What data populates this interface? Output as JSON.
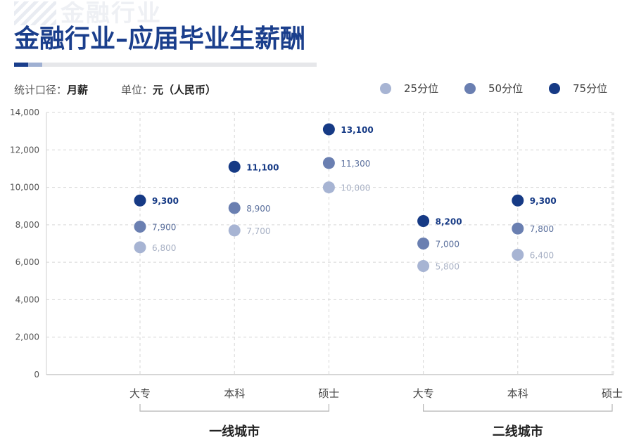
{
  "header": {
    "watermark": "金融行业",
    "title": "金融行业–应届毕业生薪酬"
  },
  "meta": {
    "scope_label": "统计口径：",
    "scope_value": "月薪",
    "unit_label": "单位：",
    "unit_value": "元（人民币）"
  },
  "colors": {
    "p25": "#a7b4d3",
    "p50": "#6a7fb1",
    "p75": "#163a85",
    "title": "#1a3e8c",
    "grid": "#d6d6d6"
  },
  "chart_data": {
    "type": "scatter",
    "title": "",
    "xlabel": "",
    "ylabel": "",
    "ylim": [
      0,
      14000
    ],
    "yticks": [
      0,
      2000,
      4000,
      6000,
      8000,
      10000,
      12000,
      14000
    ],
    "ytick_labels": [
      "0",
      "2,000",
      "4,000",
      "6,000",
      "8,000",
      "10,000",
      "12,000",
      "14,000"
    ],
    "categories": [
      "大专",
      "本科",
      "硕士",
      "大专",
      "本科",
      "硕士"
    ],
    "groups": [
      {
        "label": "一线城市",
        "categories": [
          0,
          1,
          2
        ]
      },
      {
        "label": "二线城市",
        "categories": [
          3,
          4,
          5
        ]
      }
    ],
    "legend_position": "top-right",
    "grid": true,
    "series": [
      {
        "name": "25分位",
        "color": "#a7b4d3",
        "values": [
          6800,
          7700,
          10000,
          5800,
          6400,
          null
        ],
        "labels": [
          "6,800",
          "7,700",
          "10,000",
          "5,800",
          "6,400",
          ""
        ]
      },
      {
        "name": "50分位",
        "color": "#6a7fb1",
        "values": [
          7900,
          8900,
          11300,
          7000,
          7800,
          null
        ],
        "labels": [
          "7,900",
          "8,900",
          "11,300",
          "7,000",
          "7,800",
          ""
        ]
      },
      {
        "name": "75分位",
        "color": "#163a85",
        "values": [
          9300,
          11100,
          13100,
          8200,
          9300,
          null
        ],
        "labels": [
          "9,300",
          "11,100",
          "13,100",
          "8,200",
          "9,300",
          ""
        ]
      }
    ]
  }
}
